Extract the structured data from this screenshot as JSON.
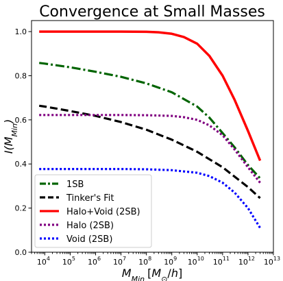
{
  "chart_data": {
    "type": "line",
    "title": "Convergence at Small Masses",
    "xlabel": "M_Min [M_o/h]",
    "ylabel": "I(M_Min)",
    "x_scale": "log",
    "xlim": [
      3000.0,
      10000000000000.0
    ],
    "ylim": [
      0.0,
      1.05
    ],
    "x_ticks": [
      {
        "value": 10000.0,
        "base": "10",
        "exp": "4"
      },
      {
        "value": 100000.0,
        "base": "10",
        "exp": "5"
      },
      {
        "value": 1000000.0,
        "base": "10",
        "exp": "6"
      },
      {
        "value": 10000000.0,
        "base": "10",
        "exp": "7"
      },
      {
        "value": 100000000.0,
        "base": "10",
        "exp": "8"
      },
      {
        "value": 1000000000.0,
        "base": "10",
        "exp": "9"
      },
      {
        "value": 10000000000.0,
        "base": "10",
        "exp": "10"
      },
      {
        "value": 100000000000.0,
        "base": "10",
        "exp": "11"
      },
      {
        "value": 1000000000000.0,
        "base": "10",
        "exp": "12"
      },
      {
        "value": 10000000000000.0,
        "base": "10",
        "exp": "13"
      }
    ],
    "y_ticks": [
      "0.0",
      "0.2",
      "0.4",
      "0.6",
      "0.8",
      "1.0"
    ],
    "legend_position": "lower-left",
    "series": [
      {
        "name": "1SB",
        "color": "#006400",
        "style": "dashdot",
        "x": [
          6000.0,
          10000.0,
          100000.0,
          1000000.0,
          10000000.0,
          100000000.0,
          1000000000.0,
          10000000000.0,
          30000000000.0,
          100000000000.0,
          300000000000.0,
          1000000000000.0,
          3000000000000.0
        ],
        "y": [
          0.858,
          0.855,
          0.838,
          0.818,
          0.795,
          0.765,
          0.725,
          0.66,
          0.61,
          0.54,
          0.475,
          0.395,
          0.335
        ]
      },
      {
        "name": "Tinker's Fit",
        "color": "#000000",
        "style": "dashed",
        "x": [
          6000.0,
          10000.0,
          100000.0,
          1000000.0,
          10000000.0,
          100000000.0,
          1000000000.0,
          10000000000.0,
          100000000000.0,
          1000000000000.0,
          3000000000000.0
        ],
        "y": [
          0.664,
          0.66,
          0.64,
          0.618,
          0.59,
          0.555,
          0.51,
          0.455,
          0.385,
          0.295,
          0.245
        ]
      },
      {
        "name": "Halo+Void (2SB)",
        "color": "#ff0000",
        "style": "solid",
        "x": [
          6000.0,
          10000.0,
          100000.0,
          1000000.0,
          10000000.0,
          100000000.0,
          300000000.0,
          1000000000.0,
          3000000000.0,
          10000000000.0,
          30000000000.0,
          100000000000.0,
          300000000000.0,
          1000000000000.0,
          3000000000000.0
        ],
        "y": [
          1.0,
          1.0,
          1.0,
          1.0,
          1.0,
          0.999,
          0.997,
          0.99,
          0.975,
          0.945,
          0.89,
          0.8,
          0.69,
          0.55,
          0.415
        ]
      },
      {
        "name": "Halo (2SB)",
        "color": "#800080",
        "style": "dotted",
        "x": [
          6000.0,
          10000.0,
          100000.0,
          1000000.0,
          10000000.0,
          100000000.0,
          1000000000.0,
          3000000000.0,
          10000000000.0,
          30000000000.0,
          100000000000.0,
          300000000000.0,
          1000000000000.0,
          3000000000000.0
        ],
        "y": [
          0.622,
          0.622,
          0.622,
          0.622,
          0.622,
          0.621,
          0.618,
          0.612,
          0.6,
          0.575,
          0.53,
          0.465,
          0.385,
          0.315
        ]
      },
      {
        "name": "Void (2SB)",
        "color": "#0000ff",
        "style": "dotted",
        "x": [
          6000.0,
          10000.0,
          100000.0,
          1000000.0,
          10000000.0,
          100000000.0,
          1000000000.0,
          10000000000.0,
          30000000000.0,
          100000000000.0,
          300000000000.0,
          1000000000000.0,
          3000000000000.0
        ],
        "y": [
          0.377,
          0.377,
          0.377,
          0.377,
          0.377,
          0.376,
          0.372,
          0.36,
          0.345,
          0.315,
          0.27,
          0.2,
          0.11
        ]
      }
    ]
  }
}
